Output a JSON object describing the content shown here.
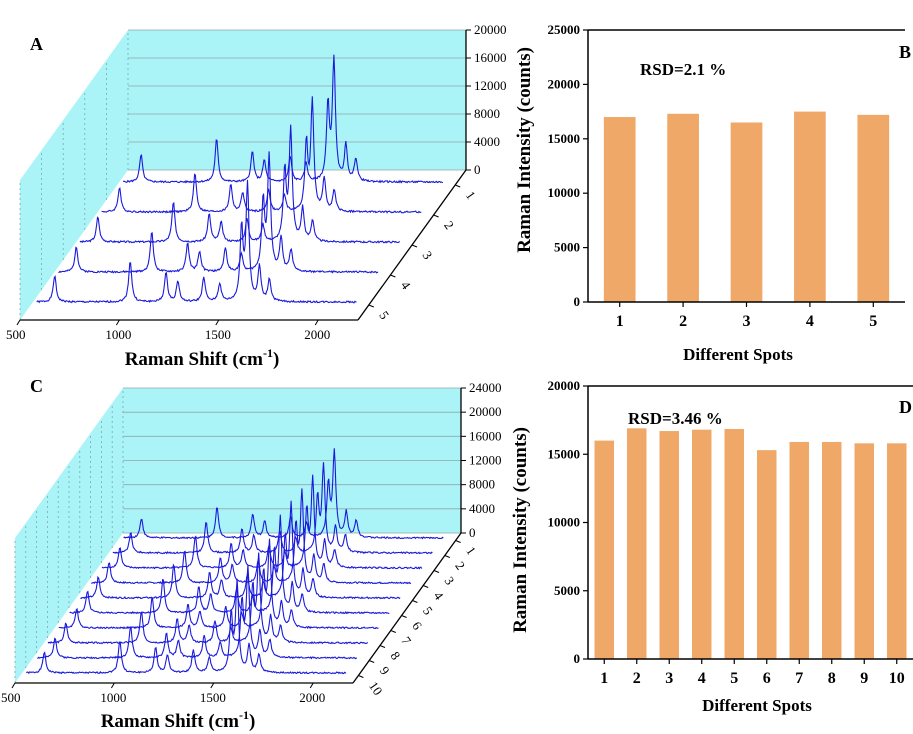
{
  "chart_data": [
    {
      "panel": "A",
      "type": "line",
      "style": "3d-waterfall",
      "xlabel": "Raman Shift (cm-1)",
      "xlabel_main": "Raman Shift (cm",
      "xlabel_sup": "-1",
      "xlabel_close": ")",
      "xlim": [
        500,
        2200
      ],
      "x_ticks": [
        "500",
        "1000",
        "1500",
        "2000"
      ],
      "z_ticks": [
        "0",
        "4000",
        "8000",
        "12000",
        "16000",
        "20000"
      ],
      "zlim": [
        0,
        20000
      ],
      "spot_ticks": [
        "1",
        "2",
        "3",
        "4",
        "5"
      ],
      "series_color": "#1a1adc",
      "wall_color": "#aaf4f8",
      "peaks": [
        {
          "x": 620,
          "h": 3800
        },
        {
          "x": 1000,
          "h": 6000
        },
        {
          "x": 1180,
          "h": 4200
        },
        {
          "x": 1240,
          "h": 3000
        },
        {
          "x": 1370,
          "h": 3500
        },
        {
          "x": 1450,
          "h": 2600
        },
        {
          "x": 1560,
          "h": 10500
        },
        {
          "x": 1590,
          "h": 16800
        },
        {
          "x": 1650,
          "h": 5000
        },
        {
          "x": 1700,
          "h": 3200
        }
      ]
    },
    {
      "panel": "B",
      "type": "bar",
      "categories": [
        "1",
        "2",
        "3",
        "4",
        "5"
      ],
      "values": [
        17000,
        17300,
        16500,
        17500,
        17200
      ],
      "ylim": [
        0,
        25000
      ],
      "y_ticks": [
        "0",
        "5000",
        "10000",
        "15000",
        "20000",
        "25000"
      ],
      "xlabel": "Different Spots",
      "ylabel": "Raman Intensity (counts)",
      "annotation": "RSD=2.1 %",
      "bar_color": "#f0a868"
    },
    {
      "panel": "C",
      "type": "line",
      "style": "3d-waterfall",
      "xlabel": "Raman Shift (cm-1)",
      "xlabel_main": "Raman Shift (cm",
      "xlabel_sup": "-1",
      "xlabel_close": ")",
      "xlim": [
        500,
        2200
      ],
      "x_ticks": [
        "500",
        "1000",
        "1500",
        "2000"
      ],
      "z_ticks": [
        "0",
        "4000",
        "8000",
        "12000",
        "16000",
        "20000",
        "24000"
      ],
      "zlim": [
        0,
        24000
      ],
      "spot_ticks": [
        "1",
        "2",
        "3",
        "4",
        "5",
        "6",
        "7",
        "8",
        "9",
        "10"
      ],
      "series_color": "#1a1adc",
      "wall_color": "#aaf4f8",
      "peaks": [
        {
          "x": 620,
          "h": 3500
        },
        {
          "x": 1000,
          "h": 5500
        },
        {
          "x": 1180,
          "h": 4200
        },
        {
          "x": 1240,
          "h": 3000
        },
        {
          "x": 1370,
          "h": 3800
        },
        {
          "x": 1450,
          "h": 2600
        },
        {
          "x": 1560,
          "h": 9500
        },
        {
          "x": 1590,
          "h": 15000
        },
        {
          "x": 1650,
          "h": 4500
        },
        {
          "x": 1700,
          "h": 3000
        }
      ]
    },
    {
      "panel": "D",
      "type": "bar",
      "categories": [
        "1",
        "2",
        "3",
        "4",
        "5",
        "6",
        "7",
        "8",
        "9",
        "10"
      ],
      "values": [
        16000,
        16900,
        16700,
        16800,
        16850,
        15300,
        15900,
        15900,
        15800,
        15800
      ],
      "ylim": [
        0,
        20000
      ],
      "y_ticks": [
        "0",
        "5000",
        "10000",
        "15000",
        "20000"
      ],
      "xlabel": "Different Spots",
      "ylabel": "Raman Intensity (counts)",
      "annotation": "RSD=3.46 %",
      "bar_color": "#f0a868"
    }
  ]
}
